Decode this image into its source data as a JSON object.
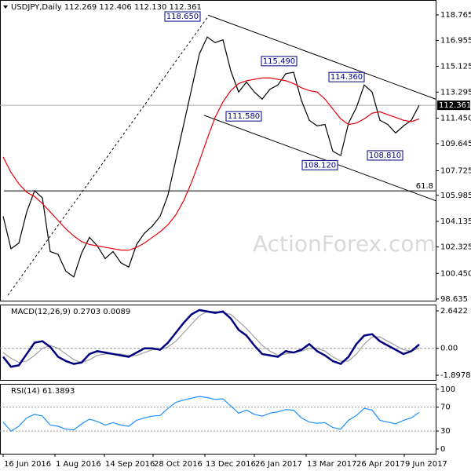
{
  "chart_data": [
    {
      "type": "line",
      "title": "USDJPY,Daily  112.269 112.406 112.130 112.361",
      "x": [
        0,
        1,
        2,
        3,
        4,
        5,
        6,
        7,
        8,
        9,
        10,
        11,
        12,
        13,
        14,
        15,
        16,
        17,
        18,
        19,
        20,
        21,
        22,
        23,
        24,
        25,
        26,
        27,
        28,
        29,
        30,
        31,
        32,
        33,
        34,
        35,
        36,
        37,
        38,
        39,
        40,
        41,
        42,
        43,
        44,
        45,
        46,
        47,
        48,
        49,
        50,
        51,
        52,
        53
      ],
      "xlim": [
        -0.4,
        55.1
      ],
      "ylim": [
        98.52,
        119.82
      ],
      "yticks": [
        118.765,
        116.955,
        115.125,
        113.295,
        {
          "value": 111.45,
          "label": "111.450"
        },
        109.645,
        107.725,
        105.985,
        104.135,
        102.325,
        {
          "value": 100.45,
          "label": "100.450"
        },
        98.635
      ],
      "series": [
        {
          "color": "#000000",
          "values": [
            104.5,
            102.2,
            102.6,
            104.8,
            106.3,
            105.8,
            102.0,
            101.8,
            100.6,
            100.2,
            101.9,
            103.0,
            102.4,
            101.5,
            102.0,
            101.2,
            100.9,
            102.5,
            103.3,
            103.8,
            104.5,
            106.0,
            108.5,
            111.0,
            113.5,
            116.0,
            117.2,
            116.8,
            117.0,
            114.8,
            113.3,
            114.0,
            113.3,
            112.8,
            113.5,
            113.8,
            114.6,
            114.7,
            112.7,
            111.3,
            110.9,
            111.0,
            109.1,
            108.8,
            111.1,
            112.2,
            113.8,
            113.3,
            111.3,
            111.0,
            110.4,
            110.9,
            111.3,
            112.361
          ]
        },
        {
          "color": "#e8000b",
          "values": [
            108.7,
            107.6,
            106.8,
            106.2,
            105.9,
            105.4,
            104.8,
            104.2,
            103.6,
            103.1,
            102.7,
            102.5,
            102.4,
            102.3,
            102.2,
            102.1,
            102.1,
            102.3,
            102.6,
            103.0,
            103.4,
            103.9,
            104.6,
            105.6,
            106.9,
            108.4,
            110.0,
            111.5,
            112.6,
            113.4,
            113.9,
            114.1,
            114.2,
            114.3,
            114.3,
            114.2,
            114.1,
            113.9,
            113.6,
            113.4,
            113.3,
            112.8,
            112.1,
            111.4,
            111.0,
            111.1,
            111.4,
            111.8,
            111.9,
            111.7,
            111.5,
            111.3,
            111.2,
            111.4
          ]
        }
      ],
      "last_price": 112.361,
      "levels": [
        {
          "value": 106.3,
          "label": "61.8"
        }
      ],
      "trendlines": [
        {
          "points": [
            [
              0.6,
              98.9
            ],
            [
              26.1,
              118.65
            ]
          ],
          "style": "dashed"
        },
        {
          "points": [
            [
              26.1,
              118.75
            ],
            [
              55.1,
              112.8
            ]
          ],
          "style": "solid"
        },
        {
          "points": [
            [
              25.6,
              111.65
            ],
            [
              55.1,
              105.6
            ]
          ],
          "style": "solid"
        }
      ],
      "annotations": [
        {
          "label": "118.650",
          "value": 118.65,
          "x": 20.6
        },
        {
          "label": "115.490",
          "value": 115.49,
          "x": 32.9
        },
        {
          "label": "114.360",
          "value": 114.36,
          "x": 41.5
        },
        {
          "label": "111.580",
          "value": 111.58,
          "x": 28.4
        },
        {
          "label": "108.120",
          "value": 108.12,
          "x": 38.1
        },
        {
          "label": "108.810",
          "value": 108.81,
          "x": 46.4
        }
      ]
    },
    {
      "type": "line",
      "title": "MACD(12,26,9) 0.2703 0.0089",
      "x": [
        0,
        1,
        2,
        3,
        4,
        5,
        6,
        7,
        8,
        9,
        10,
        11,
        12,
        13,
        14,
        15,
        16,
        17,
        18,
        19,
        20,
        21,
        22,
        23,
        24,
        25,
        26,
        27,
        28,
        29,
        30,
        31,
        32,
        33,
        34,
        35,
        36,
        37,
        38,
        39,
        40,
        41,
        42,
        43,
        44,
        45,
        46,
        47,
        48,
        49,
        50,
        51,
        52,
        53
      ],
      "xlim": [
        -0.4,
        55.1
      ],
      "ylim": [
        -2.23,
        3.085
      ],
      "yticks": [
        2.6422,
        {
          "value": 0,
          "label": "0.00"
        },
        -1.8978
      ],
      "zero_line": 0,
      "series": [
        {
          "color": "#a0a0a0",
          "values": [
            -0.3,
            -0.7,
            -1.0,
            -0.9,
            -0.5,
            0.0,
            0.2,
            0.0,
            -0.4,
            -0.8,
            -1.0,
            -0.8,
            -0.5,
            -0.4,
            -0.4,
            -0.4,
            -0.5,
            -0.5,
            -0.3,
            -0.1,
            -0.1,
            0.1,
            0.5,
            1.1,
            1.7,
            2.3,
            2.6,
            2.6,
            2.5,
            2.4,
            1.9,
            1.4,
            0.8,
            0.2,
            -0.2,
            -0.5,
            -0.4,
            -0.3,
            -0.2,
            0.0,
            0.0,
            -0.2,
            -0.6,
            -0.9,
            -0.9,
            -0.4,
            0.3,
            0.8,
            0.8,
            0.5,
            0.2,
            -0.1,
            -0.2,
            0.0089
          ]
        },
        {
          "color": "#000080",
          "values": [
            -0.6,
            -1.3,
            -1.2,
            -0.4,
            0.4,
            0.5,
            0.1,
            -0.6,
            -0.9,
            -1.1,
            -1.0,
            -0.4,
            -0.2,
            -0.3,
            -0.4,
            -0.5,
            -0.6,
            -0.3,
            0.0,
            0.0,
            -0.1,
            0.4,
            1.1,
            1.8,
            2.4,
            2.7,
            2.6,
            2.5,
            2.6,
            2.1,
            1.3,
            0.9,
            0.2,
            -0.4,
            -0.5,
            -0.6,
            -0.2,
            -0.3,
            -0.1,
            0.3,
            -0.2,
            -0.5,
            -0.9,
            -1.1,
            -0.6,
            0.3,
            0.9,
            1.0,
            0.5,
            0.2,
            -0.1,
            -0.4,
            -0.2,
            0.2703
          ]
        }
      ]
    },
    {
      "type": "line",
      "title": "RSI(14) 61.3893",
      "x": [
        0,
        1,
        2,
        3,
        4,
        5,
        6,
        7,
        8,
        9,
        10,
        11,
        12,
        13,
        14,
        15,
        16,
        17,
        18,
        19,
        20,
        21,
        22,
        23,
        24,
        25,
        26,
        27,
        28,
        29,
        30,
        31,
        32,
        33,
        34,
        35,
        36,
        37,
        38,
        39,
        40,
        41,
        42,
        43,
        44,
        45,
        46,
        47,
        48,
        49,
        50,
        51,
        52,
        53
      ],
      "xlim": [
        -0.4,
        55.1
      ],
      "ylim": [
        -8,
        109
      ],
      "yticks": [
        100,
        70,
        30,
        0
      ],
      "dotted_levels": [
        70,
        30
      ],
      "series": [
        {
          "color": "#1e90ff",
          "values": [
            45,
            30,
            38,
            52,
            58,
            55,
            40,
            38,
            33,
            32,
            42,
            50,
            46,
            40,
            44,
            40,
            38,
            48,
            52,
            55,
            56,
            68,
            78,
            82,
            85,
            88,
            86,
            83,
            84,
            72,
            60,
            65,
            58,
            55,
            60,
            62,
            66,
            65,
            52,
            45,
            43,
            44,
            36,
            33,
            48,
            56,
            68,
            65,
            48,
            45,
            42,
            48,
            52,
            61.3893
          ]
        }
      ],
      "xticks": [
        {
          "value": 0,
          "label": "16 Jun 2016"
        },
        {
          "value": 6.6,
          "label": "1 Aug 2016"
        },
        {
          "value": 12.9,
          "label": "14 Sep 2016"
        },
        {
          "value": 19.1,
          "label": "28 Oct 2016"
        },
        {
          "value": 25.7,
          "label": "13 Dec 2016"
        },
        {
          "value": 32,
          "label": "26 Jan 2017"
        },
        {
          "value": 38.6,
          "label": "13 Mar 2017"
        },
        {
          "value": 44.9,
          "label": "26 Apr 2017"
        },
        {
          "value": 51.1,
          "label": "9 Jun 2017"
        }
      ]
    }
  ]
}
